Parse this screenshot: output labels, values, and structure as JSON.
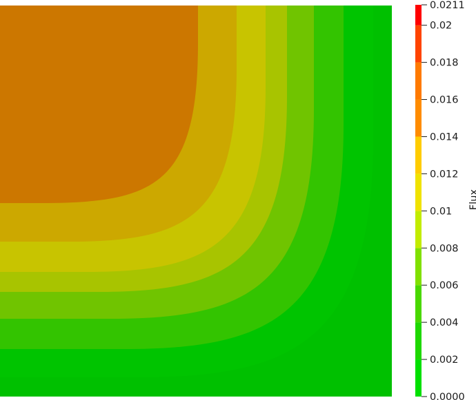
{
  "chart_data": {
    "type": "heatmap",
    "plot_kind": "filled contour",
    "colorbar": {
      "title": "Flux",
      "range": [
        0.0,
        0.0211
      ],
      "ticks": [
        {
          "value": 0.0,
          "label": "0.0000"
        },
        {
          "value": 0.002,
          "label": "0.002"
        },
        {
          "value": 0.004,
          "label": "0.004"
        },
        {
          "value": 0.006,
          "label": "0.006"
        },
        {
          "value": 0.008,
          "label": "0.008"
        },
        {
          "value": 0.01,
          "label": "0.01"
        },
        {
          "value": 0.012,
          "label": "0.012"
        },
        {
          "value": 0.014,
          "label": "0.014"
        },
        {
          "value": 0.016,
          "label": "0.016"
        },
        {
          "value": 0.018,
          "label": "0.018"
        },
        {
          "value": 0.02,
          "label": "0.02"
        },
        {
          "value": 0.0211,
          "label": "0.0211"
        }
      ],
      "bands": [
        {
          "from": 0.0,
          "to": 0.002,
          "color": "#00e000"
        },
        {
          "from": 0.002,
          "to": 0.004,
          "color": "#1ed800"
        },
        {
          "from": 0.004,
          "to": 0.006,
          "color": "#49d800"
        },
        {
          "from": 0.006,
          "to": 0.008,
          "color": "#80e000"
        },
        {
          "from": 0.008,
          "to": 0.01,
          "color": "#c2ec00"
        },
        {
          "from": 0.01,
          "to": 0.012,
          "color": "#f0e200"
        },
        {
          "from": 0.012,
          "to": 0.014,
          "color": "#ffcc00"
        },
        {
          "from": 0.014,
          "to": 0.016,
          "color": "#ff8c00"
        },
        {
          "from": 0.016,
          "to": 0.018,
          "color": "#ff7a00"
        },
        {
          "from": 0.018,
          "to": 0.02,
          "color": "#ff4400"
        },
        {
          "from": 0.02,
          "to": 0.0211,
          "color": "#ff0000"
        }
      ]
    },
    "contour_levels": [
      {
        "label_value": 0.002,
        "color": "#00c400"
      },
      {
        "label_value": 0.004,
        "color": "#33c400"
      },
      {
        "label_value": 0.006,
        "color": "#70c400"
      },
      {
        "label_value": 0.008,
        "color": "#a8c400"
      },
      {
        "label_value": 0.01,
        "color": "#c8c400"
      },
      {
        "label_value": 0.012,
        "color": "#cca800"
      },
      {
        "label_value": 0.014,
        "color": "#cc7700"
      },
      {
        "label_value": 0.016,
        "color": "#cc3a00"
      },
      {
        "label_value": 0.018,
        "color": "#cc0000"
      }
    ]
  }
}
